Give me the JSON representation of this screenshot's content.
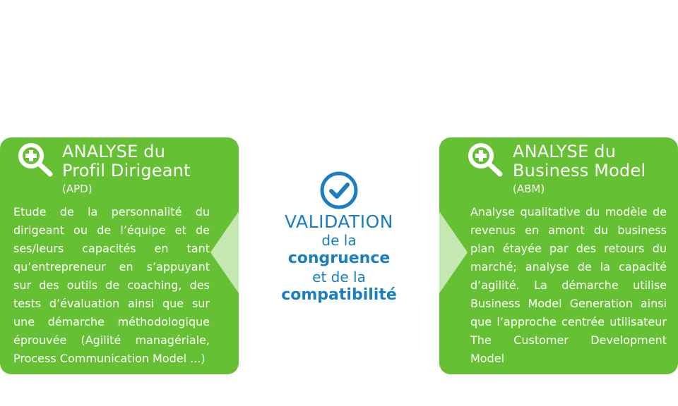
{
  "left_card": {
    "title_line1": "ANALYSE du",
    "title_line2": "Profil Dirigeant",
    "abbr": "(APD)",
    "description": "Etude de la personnalité du dirigeant ou de l’équipe et de ses/leurs capacités en tant qu’entrepreneur en s’appuyant sur des outils de coaching, des tests d’évaluation ainsi que sur une démarche méthodologique éprouvée (Agilité managériale, Process Communication Model ...)",
    "icon": "magnifier-plus-icon"
  },
  "center": {
    "icon": "check-circle-icon",
    "line1": "VALIDATION",
    "line2": "de la",
    "line3": "congruence",
    "line4": "et de la",
    "line5": "compatibilité"
  },
  "right_card": {
    "title_line1": "ANALYSE du",
    "title_line2": "Business Model",
    "abbr": "(ABM)",
    "description": "Analyse qualitative du modèle de revenus en amont du business plan étayée par des retours du marché; analyse de la capacité d’agilité. La démarche utilise Business Model Generation ainsi que l’approche centrée utilisateur The Customer Development Model",
    "icon": "magnifier-plus-icon"
  },
  "colors": {
    "card_green": "#66c033",
    "notch_light_green": "#c5e8b0",
    "center_blue": "#1a7ec1",
    "text_white": "#ffffff"
  }
}
